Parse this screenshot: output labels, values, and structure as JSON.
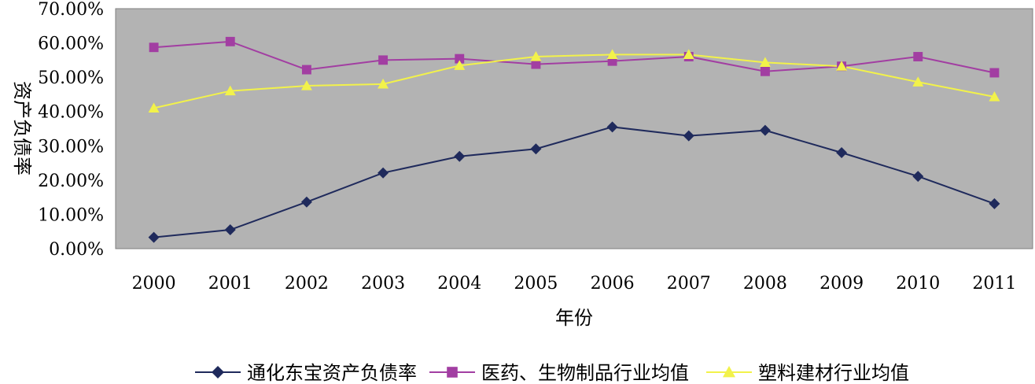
{
  "chart_data": {
    "type": "line",
    "title": "",
    "xlabel": "年份",
    "ylabel": "资产负债率",
    "x": [
      "2000",
      "2001",
      "2002",
      "2003",
      "2004",
      "2005",
      "2006",
      "2007",
      "2008",
      "2009",
      "2010",
      "2011"
    ],
    "ylim": [
      0,
      70
    ],
    "yticks": [
      "0.00%",
      "10.00%",
      "20.00%",
      "30.00%",
      "40.00%",
      "50.00%",
      "60.00%",
      "70.00%"
    ],
    "grid": false,
    "plot_background": "#b3b3b3",
    "legend_position": "bottom",
    "series": [
      {
        "name": "通化东宝资产负债率",
        "color": "#1f2a5c",
        "marker": "diamond",
        "values": [
          3.3,
          5.5,
          13.6,
          22.1,
          26.9,
          29.1,
          35.5,
          32.9,
          34.5,
          28.0,
          21.1,
          13.1
        ]
      },
      {
        "name": "医药、生物制品行业均值",
        "color": "#a23ea2",
        "marker": "square",
        "values": [
          58.7,
          60.4,
          52.2,
          55.0,
          55.4,
          53.8,
          54.7,
          56.0,
          51.7,
          53.2,
          56.0,
          51.3
        ]
      },
      {
        "name": "塑料建材行业均值",
        "color": "#f2f24a",
        "marker": "triangle",
        "values": [
          41.0,
          46.0,
          47.5,
          48.0,
          53.4,
          56.0,
          56.6,
          56.6,
          54.3,
          53.2,
          48.6,
          44.3
        ]
      }
    ]
  }
}
